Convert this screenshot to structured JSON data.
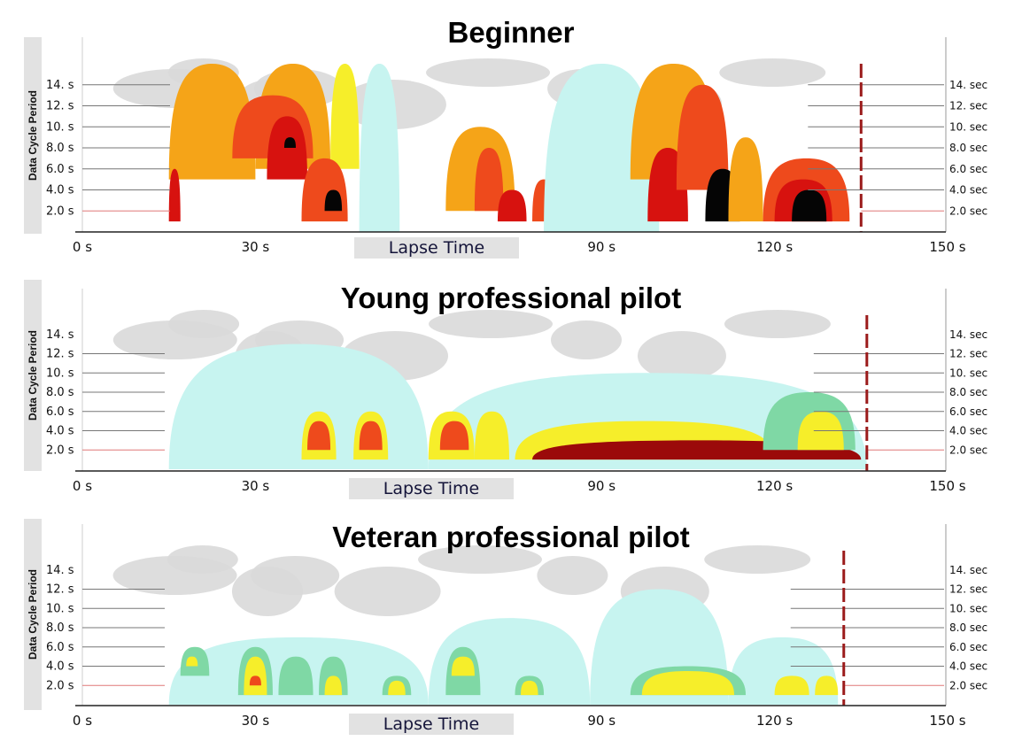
{
  "chart_data": [
    {
      "type": "heatmap",
      "title": "Beginner",
      "ylabel": "Data Cycle Period",
      "xlabel": "Lapse Time",
      "left_ticks": [
        "14. s",
        "12. s",
        "10. s",
        "8.0 s",
        "6.0 s",
        "4.0 s",
        "2.0 s"
      ],
      "right_ticks": [
        "14. sec",
        "12. sec",
        "10. sec",
        "8.0 sec",
        "6.0 sec",
        "4.0 sec",
        "2.0 sec"
      ],
      "x_ticks": [
        "0 s",
        "30 s",
        "90 s",
        "120 s",
        "150 s"
      ],
      "x_tick_values": [
        0,
        30,
        90,
        120,
        150
      ],
      "xlim": [
        0,
        150
      ],
      "ylim": [
        0,
        16
      ],
      "period_lines": [
        14,
        12,
        10,
        8,
        6,
        4
      ],
      "highlight_line": 2,
      "data_span": [
        15,
        135
      ],
      "marker_x": 135,
      "colors": {
        "gray": "#d9d9d9",
        "cyan": "#c7f4f0",
        "green": "#7fd8a5",
        "yellow": "#f6ee2a",
        "orange": "#f5a418",
        "redorange": "#ee4a1c",
        "red": "#d7120f",
        "dark": "#9b0a0a",
        "black": "#050505",
        "marker": "#9b1b1b",
        "pink": "#e07878"
      },
      "blobs": [
        {
          "x": [
            15,
            30
          ],
          "y": [
            5,
            16
          ],
          "level": 4
        },
        {
          "x": [
            30,
            43
          ],
          "y": [
            6,
            16
          ],
          "level": 4
        },
        {
          "x": [
            43,
            48
          ],
          "y": [
            6,
            16
          ],
          "level": 3
        },
        {
          "x": [
            26,
            40
          ],
          "y": [
            7,
            13
          ],
          "level": 5
        },
        {
          "x": [
            32,
            39
          ],
          "y": [
            5,
            11
          ],
          "level": 6
        },
        {
          "x": [
            38,
            46
          ],
          "y": [
            1,
            7
          ],
          "level": 5
        },
        {
          "x": [
            42,
            45
          ],
          "y": [
            2,
            4
          ],
          "level": 8
        },
        {
          "x": [
            35,
            37
          ],
          "y": [
            8,
            9
          ],
          "level": 8
        },
        {
          "x": [
            15,
            17
          ],
          "y": [
            1,
            6
          ],
          "level": 6
        },
        {
          "x": [
            48,
            55
          ],
          "y": [
            0,
            16
          ],
          "level": 1
        },
        {
          "x": [
            63,
            75
          ],
          "y": [
            2,
            10
          ],
          "level": 4
        },
        {
          "x": [
            68,
            73
          ],
          "y": [
            2,
            8
          ],
          "level": 5
        },
        {
          "x": [
            72,
            77
          ],
          "y": [
            1,
            4
          ],
          "level": 6
        },
        {
          "x": [
            78,
            82
          ],
          "y": [
            1,
            5
          ],
          "level": 5
        },
        {
          "x": [
            80,
            100
          ],
          "y": [
            0,
            16
          ],
          "level": 1
        },
        {
          "x": [
            95,
            110
          ],
          "y": [
            5,
            16
          ],
          "level": 4
        },
        {
          "x": [
            98,
            105
          ],
          "y": [
            1,
            8
          ],
          "level": 6
        },
        {
          "x": [
            103,
            112
          ],
          "y": [
            4,
            14
          ],
          "level": 5
        },
        {
          "x": [
            108,
            114
          ],
          "y": [
            1,
            6
          ],
          "level": 8
        },
        {
          "x": [
            112,
            118
          ],
          "y": [
            1,
            9
          ],
          "level": 4
        },
        {
          "x": [
            118,
            133
          ],
          "y": [
            1,
            7
          ],
          "level": 5
        },
        {
          "x": [
            120,
            130
          ],
          "y": [
            1,
            5
          ],
          "level": 6
        },
        {
          "x": [
            123,
            129
          ],
          "y": [
            1,
            4
          ],
          "level": 8
        }
      ]
    },
    {
      "type": "heatmap",
      "title": "Young professional pilot",
      "ylabel": "Data Cycle Period",
      "xlabel": "Lapse Time",
      "left_ticks": [
        "14. s",
        "12. s",
        "10. s",
        "8.0 s",
        "6.0 s",
        "4.0 s",
        "2.0 s"
      ],
      "right_ticks": [
        "14. sec",
        "12. sec",
        "10. sec",
        "8.0 sec",
        "6.0 sec",
        "4.0 sec",
        "2.0 sec"
      ],
      "x_ticks": [
        "0 s",
        "30 s",
        "90 s",
        "120 s",
        "150 s"
      ],
      "x_tick_values": [
        0,
        30,
        90,
        120,
        150
      ],
      "xlim": [
        0,
        150
      ],
      "ylim": [
        0,
        16
      ],
      "period_lines": [
        12,
        10,
        8,
        6,
        4
      ],
      "highlight_line": 2,
      "data_span": [
        15,
        136
      ],
      "marker_x": 136,
      "colors": {
        "gray": "#d9d9d9",
        "cyan": "#c7f4f0",
        "green": "#7fd8a5",
        "yellow": "#f6ee2a",
        "orange": "#f5a418",
        "redorange": "#ee4a1c",
        "red": "#d7120f",
        "dark": "#9b0a0a",
        "black": "#050505",
        "marker": "#9b1b1b",
        "pink": "#e07878"
      },
      "blobs": [
        {
          "x": [
            15,
            60
          ],
          "y": [
            0,
            13
          ],
          "level": 1
        },
        {
          "x": [
            60,
            136
          ],
          "y": [
            0,
            10
          ],
          "level": 1
        },
        {
          "x": [
            38,
            44
          ],
          "y": [
            1,
            6
          ],
          "level": 3
        },
        {
          "x": [
            39,
            43
          ],
          "y": [
            2,
            5
          ],
          "level": 5
        },
        {
          "x": [
            47,
            53
          ],
          "y": [
            1,
            6
          ],
          "level": 3
        },
        {
          "x": [
            48,
            52
          ],
          "y": [
            2,
            5
          ],
          "level": 5
        },
        {
          "x": [
            60,
            68
          ],
          "y": [
            1,
            6
          ],
          "level": 3
        },
        {
          "x": [
            62,
            67
          ],
          "y": [
            2,
            5
          ],
          "level": 5
        },
        {
          "x": [
            68,
            74
          ],
          "y": [
            1,
            6
          ],
          "level": 3
        },
        {
          "x": [
            75,
            120
          ],
          "y": [
            1,
            5
          ],
          "level": 3
        },
        {
          "x": [
            78,
            135
          ],
          "y": [
            1,
            3
          ],
          "level": 7
        },
        {
          "x": [
            118,
            134
          ],
          "y": [
            2,
            8
          ],
          "level": 2
        },
        {
          "x": [
            124,
            132
          ],
          "y": [
            2,
            6
          ],
          "level": 3
        }
      ]
    },
    {
      "type": "heatmap",
      "title": "Veteran professional pilot",
      "ylabel": "Data Cycle Period",
      "xlabel": "Lapse Time",
      "left_ticks": [
        "14. s",
        "12. s",
        "10. s",
        "8.0 s",
        "6.0 s",
        "4.0 s",
        "2.0 s"
      ],
      "right_ticks": [
        "14. sec",
        "12. sec",
        "10. sec",
        "8.0 sec",
        "6.0 sec",
        "4.0 sec",
        "2.0 sec"
      ],
      "x_ticks": [
        "0 s",
        "30 s",
        "90 s",
        "120 s",
        "150 s"
      ],
      "x_tick_values": [
        0,
        30,
        90,
        120,
        150
      ],
      "xlim": [
        0,
        150
      ],
      "ylim": [
        0,
        16
      ],
      "period_lines": [
        12,
        10,
        8,
        6,
        4
      ],
      "highlight_line": 2,
      "data_span": [
        15,
        132
      ],
      "marker_x": 132,
      "colors": {
        "gray": "#d9d9d9",
        "cyan": "#c7f4f0",
        "green": "#7fd8a5",
        "yellow": "#f6ee2a",
        "orange": "#f5a418",
        "redorange": "#ee4a1c",
        "red": "#d7120f",
        "dark": "#9b0a0a",
        "black": "#050505",
        "marker": "#9b1b1b",
        "pink": "#e07878"
      },
      "blobs": [
        {
          "x": [
            15,
            60
          ],
          "y": [
            0,
            7
          ],
          "level": 1
        },
        {
          "x": [
            60,
            88
          ],
          "y": [
            0,
            9
          ],
          "level": 1
        },
        {
          "x": [
            88,
            112
          ],
          "y": [
            0,
            12
          ],
          "level": 1
        },
        {
          "x": [
            112,
            131
          ],
          "y": [
            0,
            7
          ],
          "level": 1
        },
        {
          "x": [
            17,
            22
          ],
          "y": [
            3,
            6
          ],
          "level": 2
        },
        {
          "x": [
            18,
            20
          ],
          "y": [
            4,
            5
          ],
          "level": 3
        },
        {
          "x": [
            27,
            33
          ],
          "y": [
            1,
            6
          ],
          "level": 2
        },
        {
          "x": [
            28,
            32
          ],
          "y": [
            1,
            5
          ],
          "level": 3
        },
        {
          "x": [
            29,
            31
          ],
          "y": [
            2,
            3
          ],
          "level": 5
        },
        {
          "x": [
            34,
            40
          ],
          "y": [
            1,
            5
          ],
          "level": 2
        },
        {
          "x": [
            41,
            46
          ],
          "y": [
            1,
            5
          ],
          "level": 2
        },
        {
          "x": [
            42,
            45
          ],
          "y": [
            1,
            3
          ],
          "level": 3
        },
        {
          "x": [
            52,
            57
          ],
          "y": [
            1,
            3
          ],
          "level": 2
        },
        {
          "x": [
            53,
            56
          ],
          "y": [
            1,
            2.5
          ],
          "level": 3
        },
        {
          "x": [
            63,
            69
          ],
          "y": [
            1,
            6
          ],
          "level": 2
        },
        {
          "x": [
            64,
            68
          ],
          "y": [
            3,
            5
          ],
          "level": 3
        },
        {
          "x": [
            75,
            80
          ],
          "y": [
            1,
            3
          ],
          "level": 2
        },
        {
          "x": [
            76,
            79
          ],
          "y": [
            1,
            2.5
          ],
          "level": 3
        },
        {
          "x": [
            95,
            115
          ],
          "y": [
            1,
            4
          ],
          "level": 2
        },
        {
          "x": [
            97,
            113
          ],
          "y": [
            1,
            3.5
          ],
          "level": 3
        },
        {
          "x": [
            120,
            126
          ],
          "y": [
            1,
            3
          ],
          "level": 3
        },
        {
          "x": [
            127,
            131
          ],
          "y": [
            1,
            3
          ],
          "level": 3
        }
      ]
    }
  ]
}
